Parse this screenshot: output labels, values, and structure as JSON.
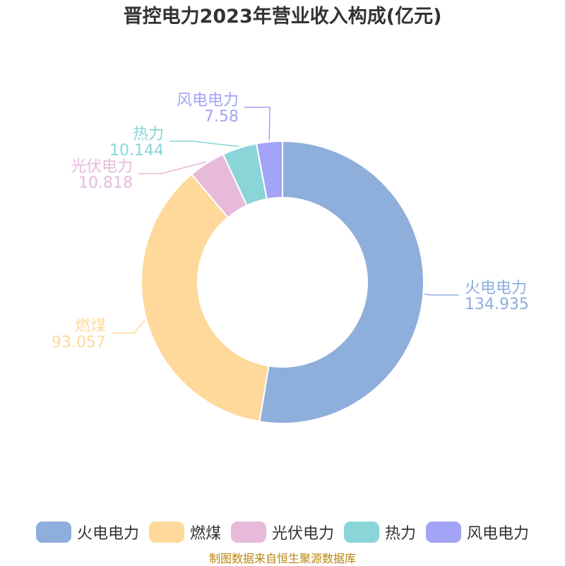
{
  "chart_data": {
    "type": "pie",
    "title": "晋控电力2023年营业收入构成(亿元)",
    "donut": true,
    "legend_position": "bottom",
    "series": [
      {
        "name": "火电电力",
        "value": 134.935,
        "value_label": "134.935",
        "color": "#8eaedb"
      },
      {
        "name": "燃煤",
        "value": 93.057,
        "value_label": "93.057",
        "color": "#fed99b"
      },
      {
        "name": "光伏电力",
        "value": 10.818,
        "value_label": "10.818",
        "color": "#e7bada"
      },
      {
        "name": "热力",
        "value": 10.144,
        "value_label": "10.144",
        "color": "#8ad5d8"
      },
      {
        "name": "风电电力",
        "value": 7.58,
        "value_label": "7.58",
        "color": "#a3a4f5"
      }
    ]
  },
  "source": "制图数据来自恒生聚源数据库"
}
